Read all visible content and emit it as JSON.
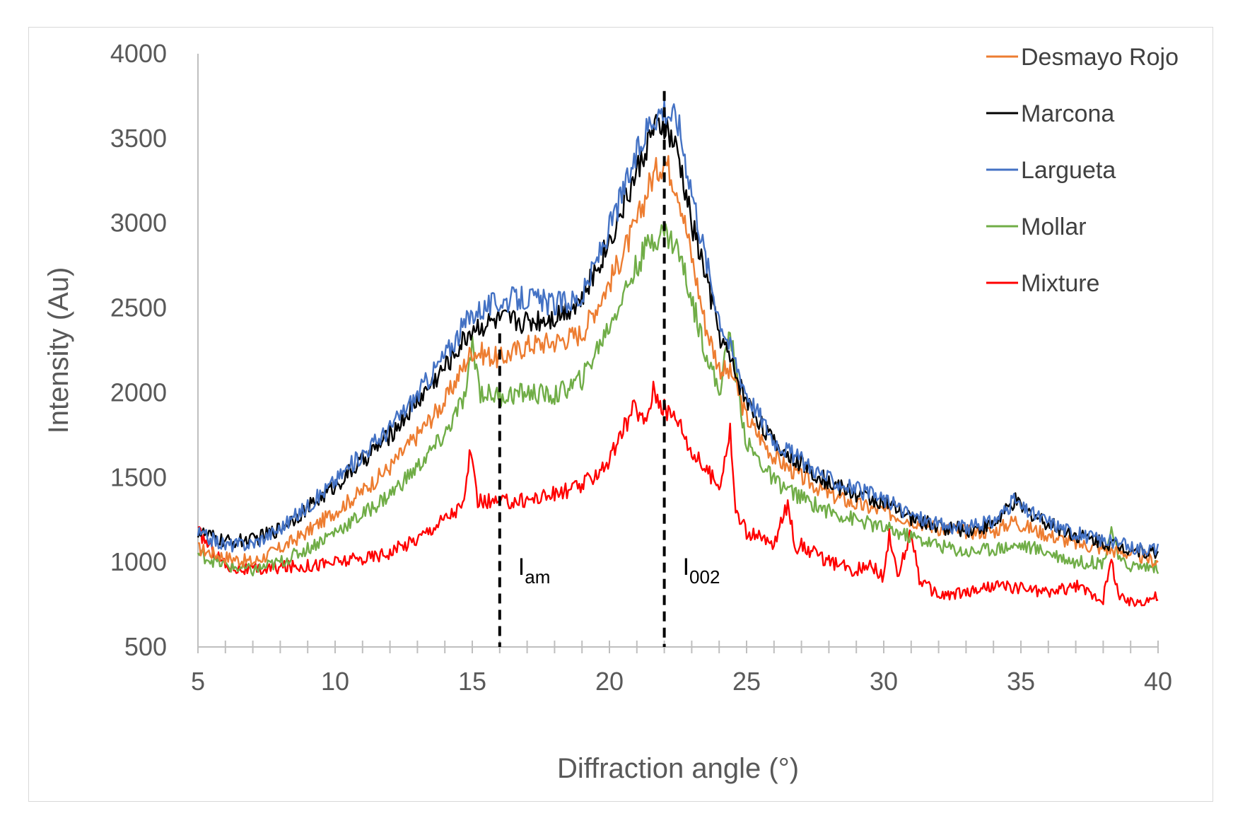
{
  "chart_data": {
    "type": "line",
    "title": "",
    "xlabel": "Diffraction angle (°)",
    "ylabel": "Intensity (Au)",
    "xlim": [
      5,
      40
    ],
    "ylim": [
      500,
      4000
    ],
    "xticks": [
      5,
      10,
      15,
      20,
      25,
      30,
      35,
      40
    ],
    "yticks": [
      500,
      1000,
      1500,
      2000,
      2500,
      3000,
      3500,
      4000
    ],
    "legend_position": "top-right",
    "series": [
      {
        "name": "Desmayo Rojo",
        "color": "#ED7D31",
        "points": [
          [
            5,
            1080
          ],
          [
            6,
            1030
          ],
          [
            7,
            1000
          ],
          [
            8,
            1080
          ],
          [
            9,
            1180
          ],
          [
            10,
            1300
          ],
          [
            11,
            1420
          ],
          [
            12,
            1560
          ],
          [
            13,
            1750
          ],
          [
            14,
            1950
          ],
          [
            15,
            2250
          ],
          [
            16,
            2200
          ],
          [
            17,
            2280
          ],
          [
            18,
            2300
          ],
          [
            19,
            2350
          ],
          [
            20,
            2650
          ],
          [
            21,
            3000
          ],
          [
            21.5,
            3250
          ],
          [
            22,
            3380
          ],
          [
            22.5,
            3200
          ],
          [
            23,
            2800
          ],
          [
            23.5,
            2400
          ],
          [
            24,
            2150
          ],
          [
            24.5,
            2100
          ],
          [
            25,
            1850
          ],
          [
            26,
            1620
          ],
          [
            27,
            1500
          ],
          [
            28,
            1400
          ],
          [
            29,
            1340
          ],
          [
            30,
            1300
          ],
          [
            31,
            1250
          ],
          [
            32,
            1200
          ],
          [
            33,
            1180
          ],
          [
            34,
            1180
          ],
          [
            34.8,
            1250
          ],
          [
            35,
            1220
          ],
          [
            36,
            1160
          ],
          [
            37,
            1110
          ],
          [
            38,
            1080
          ],
          [
            39,
            1050
          ],
          [
            40,
            1000
          ]
        ]
      },
      {
        "name": "Marcona",
        "color": "#000000",
        "points": [
          [
            5,
            1180
          ],
          [
            6,
            1120
          ],
          [
            7,
            1130
          ],
          [
            8,
            1200
          ],
          [
            9,
            1320
          ],
          [
            10,
            1450
          ],
          [
            11,
            1600
          ],
          [
            12,
            1750
          ],
          [
            13,
            1950
          ],
          [
            14,
            2150
          ],
          [
            15,
            2380
          ],
          [
            16,
            2430
          ],
          [
            17,
            2420
          ],
          [
            18,
            2450
          ],
          [
            19,
            2550
          ],
          [
            20,
            2900
          ],
          [
            21,
            3300
          ],
          [
            21.5,
            3520
          ],
          [
            22,
            3580
          ],
          [
            22.5,
            3400
          ],
          [
            23,
            3000
          ],
          [
            23.5,
            2700
          ],
          [
            24,
            2350
          ],
          [
            25,
            1950
          ],
          [
            26,
            1700
          ],
          [
            27,
            1580
          ],
          [
            28,
            1470
          ],
          [
            29,
            1400
          ],
          [
            30,
            1350
          ],
          [
            31,
            1260
          ],
          [
            32,
            1210
          ],
          [
            33,
            1190
          ],
          [
            34,
            1220
          ],
          [
            34.8,
            1360
          ],
          [
            35,
            1320
          ],
          [
            36,
            1230
          ],
          [
            37,
            1160
          ],
          [
            38,
            1120
          ],
          [
            39,
            1080
          ],
          [
            40,
            1050
          ]
        ]
      },
      {
        "name": "Largueta",
        "color": "#4472C4",
        "points": [
          [
            5,
            1170
          ],
          [
            6,
            1100
          ],
          [
            7,
            1110
          ],
          [
            8,
            1200
          ],
          [
            9,
            1330
          ],
          [
            10,
            1480
          ],
          [
            11,
            1640
          ],
          [
            12,
            1790
          ],
          [
            13,
            1990
          ],
          [
            14,
            2220
          ],
          [
            15,
            2470
          ],
          [
            16,
            2540
          ],
          [
            17,
            2560
          ],
          [
            18,
            2520
          ],
          [
            19,
            2560
          ],
          [
            20,
            2970
          ],
          [
            21,
            3400
          ],
          [
            21.5,
            3620
          ],
          [
            22,
            3680
          ],
          [
            22.5,
            3600
          ],
          [
            23,
            3200
          ],
          [
            23.5,
            2800
          ],
          [
            24,
            2450
          ],
          [
            25,
            2000
          ],
          [
            26,
            1720
          ],
          [
            27,
            1600
          ],
          [
            28,
            1490
          ],
          [
            29,
            1430
          ],
          [
            30,
            1370
          ],
          [
            31,
            1280
          ],
          [
            32,
            1220
          ],
          [
            33,
            1200
          ],
          [
            34,
            1240
          ],
          [
            34.8,
            1370
          ],
          [
            35,
            1320
          ],
          [
            36,
            1240
          ],
          [
            37,
            1170
          ],
          [
            38,
            1130
          ],
          [
            39,
            1090
          ],
          [
            40,
            1080
          ]
        ]
      },
      {
        "name": "Mollar",
        "color": "#70AD47",
        "points": [
          [
            5,
            1050
          ],
          [
            6,
            980
          ],
          [
            7,
            950
          ],
          [
            8,
            1000
          ],
          [
            9,
            1080
          ],
          [
            10,
            1180
          ],
          [
            11,
            1280
          ],
          [
            12,
            1400
          ],
          [
            13,
            1560
          ],
          [
            14,
            1750
          ],
          [
            14.8,
            2000
          ],
          [
            15,
            2300
          ],
          [
            15.3,
            2000
          ],
          [
            16,
            1980
          ],
          [
            17,
            2000
          ],
          [
            18,
            1980
          ],
          [
            19,
            2080
          ],
          [
            20,
            2400
          ],
          [
            21,
            2750
          ],
          [
            21.5,
            2900
          ],
          [
            22,
            2950
          ],
          [
            22.5,
            2850
          ],
          [
            23,
            2550
          ],
          [
            23.5,
            2250
          ],
          [
            24,
            2000
          ],
          [
            24.4,
            2370
          ],
          [
            24.7,
            2000
          ],
          [
            25,
            1700
          ],
          [
            26,
            1480
          ],
          [
            27,
            1380
          ],
          [
            28,
            1300
          ],
          [
            29,
            1250
          ],
          [
            30,
            1200
          ],
          [
            31,
            1150
          ],
          [
            32,
            1100
          ],
          [
            33,
            1060
          ],
          [
            34,
            1080
          ],
          [
            35,
            1100
          ],
          [
            36,
            1060
          ],
          [
            37,
            1000
          ],
          [
            38,
            1000
          ],
          [
            38.3,
            1200
          ],
          [
            38.6,
            1000
          ],
          [
            39,
            980
          ],
          [
            40,
            970
          ]
        ]
      },
      {
        "name": "Mixture",
        "color": "#FF0000",
        "points": [
          [
            5,
            1180
          ],
          [
            6,
            980
          ],
          [
            7,
            950
          ],
          [
            8,
            970
          ],
          [
            9,
            980
          ],
          [
            10,
            1000
          ],
          [
            11,
            1020
          ],
          [
            12,
            1060
          ],
          [
            13,
            1140
          ],
          [
            14,
            1260
          ],
          [
            14.7,
            1340
          ],
          [
            14.9,
            1650
          ],
          [
            15.2,
            1360
          ],
          [
            16,
            1350
          ],
          [
            17,
            1370
          ],
          [
            18,
            1400
          ],
          [
            19,
            1450
          ],
          [
            20,
            1600
          ],
          [
            20.9,
            1920
          ],
          [
            21.3,
            1820
          ],
          [
            21.6,
            2020
          ],
          [
            22,
            1900
          ],
          [
            22.5,
            1850
          ],
          [
            23,
            1650
          ],
          [
            23.5,
            1550
          ],
          [
            24,
            1450
          ],
          [
            24.4,
            1780
          ],
          [
            24.6,
            1300
          ],
          [
            25,
            1180
          ],
          [
            26,
            1100
          ],
          [
            26.5,
            1350
          ],
          [
            26.8,
            1080
          ],
          [
            27,
            1100
          ],
          [
            28,
            1000
          ],
          [
            29,
            950
          ],
          [
            29.5,
            1000
          ],
          [
            30,
            900
          ],
          [
            30.2,
            1180
          ],
          [
            30.5,
            900
          ],
          [
            31,
            1190
          ],
          [
            31.3,
            900
          ],
          [
            32,
            800
          ],
          [
            33,
            820
          ],
          [
            34,
            860
          ],
          [
            35,
            850
          ],
          [
            36,
            820
          ],
          [
            37,
            860
          ],
          [
            38,
            780
          ],
          [
            38.3,
            1010
          ],
          [
            38.6,
            790
          ],
          [
            39,
            760
          ],
          [
            40,
            800
          ]
        ]
      }
    ],
    "annotations": [
      {
        "label": "I",
        "subscript": "am",
        "x": 16
      },
      {
        "label": "I",
        "subscript": "002",
        "x": 22
      }
    ]
  }
}
